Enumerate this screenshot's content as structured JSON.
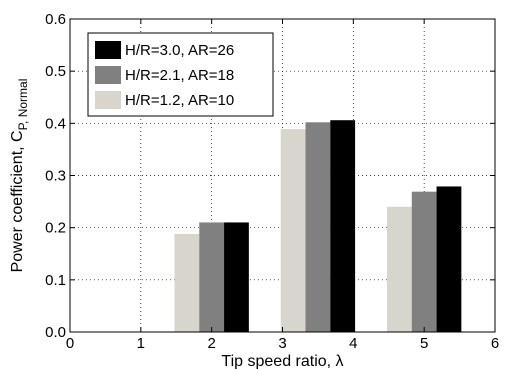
{
  "chart_data": {
    "type": "bar",
    "title": "",
    "xlabel": "Tip speed ratio, λ",
    "ylabel": "Power coefficient, C",
    "ylabel_sub": "P, Normal",
    "xlim": [
      0,
      6
    ],
    "ylim": [
      0,
      0.6
    ],
    "xticks": [
      "0",
      "1",
      "2",
      "3",
      "4",
      "5",
      "6"
    ],
    "yticks": [
      "0.0",
      "0.1",
      "0.2",
      "0.3",
      "0.4",
      "0.5",
      "0.6"
    ],
    "grid": true,
    "legend_position": "top-left",
    "categories": [
      2,
      3.5,
      5
    ],
    "series": [
      {
        "name": "H/R=3.0, AR=26",
        "color": "#000000",
        "values": [
          0.21,
          0.406,
          0.279
        ]
      },
      {
        "name": "H/R=2.1, AR=18",
        "color": "#808080",
        "values": [
          0.21,
          0.402,
          0.269
        ]
      },
      {
        "name": "H/R=1.2, AR=10",
        "color": "#d8d5cd",
        "values": [
          0.188,
          0.389,
          0.24
        ]
      }
    ]
  }
}
